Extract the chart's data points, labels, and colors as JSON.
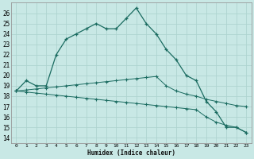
{
  "xlabel": "Humidex (Indice chaleur)",
  "background_color": "#c8e8e5",
  "grid_color": "#aed4d0",
  "line_color": "#1a6b60",
  "x_ticks": [
    0,
    1,
    2,
    3,
    4,
    5,
    6,
    7,
    8,
    9,
    10,
    11,
    12,
    13,
    14,
    15,
    16,
    17,
    18,
    19,
    20,
    21,
    22,
    23
  ],
  "ylim": [
    13.5,
    27.0
  ],
  "xlim": [
    -0.5,
    23.5
  ],
  "y_ticks": [
    14,
    15,
    16,
    17,
    18,
    19,
    20,
    21,
    22,
    23,
    24,
    25,
    26
  ],
  "line1_x": [
    0,
    1,
    2,
    3,
    4,
    5,
    6,
    7,
    8,
    9,
    10,
    11,
    12,
    13,
    14,
    15,
    16,
    17,
    18,
    19,
    20,
    21,
    22,
    23
  ],
  "line1_y": [
    18.5,
    19.5,
    19.0,
    19.0,
    22.0,
    23.5,
    24.0,
    24.5,
    25.0,
    24.5,
    24.5,
    25.5,
    26.5,
    25.0,
    24.0,
    22.5,
    21.5,
    20.0,
    19.5,
    17.5,
    16.5,
    15.0,
    15.0,
    14.5
  ],
  "line2_x": [
    0,
    1,
    2,
    3,
    4,
    5,
    6,
    7,
    8,
    9,
    10,
    11,
    12,
    13,
    14,
    15,
    16,
    17,
    18,
    19,
    20,
    21,
    22,
    23
  ],
  "line2_y": [
    18.5,
    18.6,
    18.7,
    18.8,
    18.9,
    19.0,
    19.1,
    19.2,
    19.3,
    19.4,
    19.5,
    19.6,
    19.7,
    19.8,
    19.9,
    19.0,
    18.5,
    18.2,
    18.0,
    17.7,
    17.5,
    17.3,
    17.1,
    17.0
  ],
  "line3_x": [
    0,
    1,
    2,
    3,
    4,
    5,
    6,
    7,
    8,
    9,
    10,
    11,
    12,
    13,
    14,
    15,
    16,
    17,
    18,
    19,
    20,
    21,
    22,
    23
  ],
  "line3_y": [
    18.5,
    18.4,
    18.3,
    18.2,
    18.1,
    18.0,
    17.9,
    17.8,
    17.7,
    17.6,
    17.5,
    17.4,
    17.3,
    17.2,
    17.1,
    17.0,
    16.9,
    16.8,
    16.7,
    16.0,
    15.5,
    15.2,
    15.0,
    14.5
  ]
}
